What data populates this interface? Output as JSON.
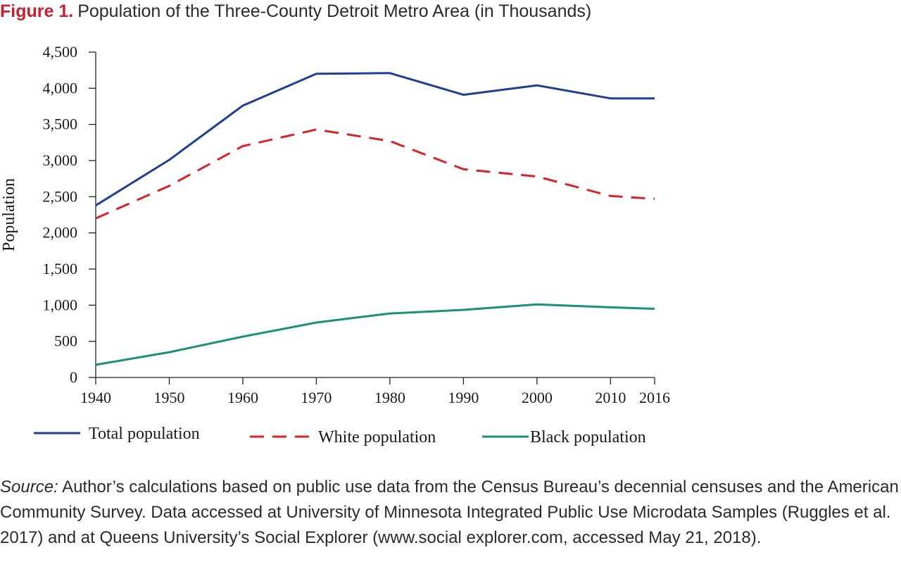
{
  "figure": {
    "label": "Figure 1.",
    "title": "Population of the Three-County Detroit Metro Area (in Thousands)"
  },
  "colors": {
    "total": "#1f3f94",
    "white": "#d8232a",
    "black": "#1a9077",
    "title_label": "#c8202f"
  },
  "chart_data": {
    "type": "line",
    "ylabel": "Population",
    "xlabel": "",
    "x": [
      1940,
      1950,
      1960,
      1970,
      1980,
      1990,
      2000,
      2010,
      2016
    ],
    "x_tick_labels": [
      "1940",
      "1950",
      "1960",
      "1970",
      "1980",
      "1990",
      "2000",
      "2010",
      "2016"
    ],
    "ylim": [
      0,
      4500
    ],
    "y_ticks": [
      0,
      500,
      1000,
      1500,
      2000,
      2500,
      3000,
      3500,
      4000,
      4500
    ],
    "y_tick_labels": [
      "0",
      "500",
      "1,000",
      "1,500",
      "2,000",
      "2,500",
      "3,000",
      "3,500",
      "4,000",
      "4,500"
    ],
    "grid": false,
    "legend_position": "bottom",
    "series": [
      {
        "name": "Total population",
        "style": "solid",
        "color": "#1f3f94",
        "values": [
          2380,
          3010,
          3760,
          4200,
          4210,
          3910,
          4040,
          3860,
          3860
        ]
      },
      {
        "name": "White population",
        "style": "dashed",
        "color": "#d8232a",
        "values": [
          2200,
          2650,
          3200,
          3430,
          3270,
          2880,
          2780,
          2510,
          2470
        ]
      },
      {
        "name": "Black population",
        "style": "solid",
        "color": "#1a9077",
        "values": [
          175,
          350,
          565,
          760,
          885,
          935,
          1010,
          970,
          950
        ]
      }
    ]
  },
  "source": {
    "label": "Source:",
    "text": " Author’s calculations based on public use data from the Census Bureau’s decennial censuses and the American Community Survey. Data accessed at University of Minnesota Integrated Public Use Microdata Samples (Ruggles et al. 2017) and at Queens University’s Social Explorer (www.social explorer.com, accessed May 21, 2018)."
  }
}
